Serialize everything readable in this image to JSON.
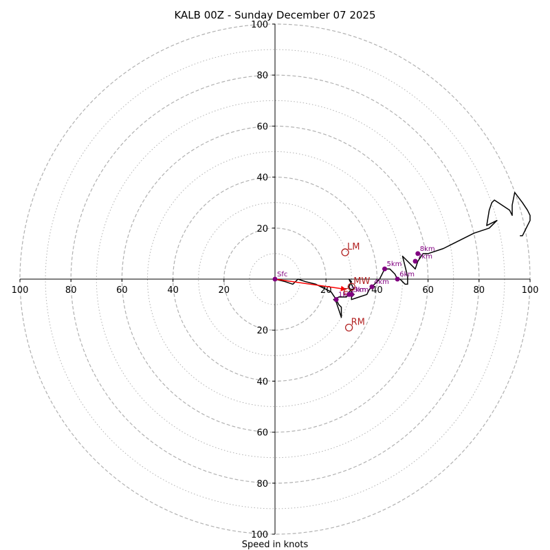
{
  "chart_data": {
    "type": "hodograph",
    "title": "KALB 00Z - Sunday December 07 2025",
    "xlabel": "Speed in knots",
    "range": [
      -100,
      100
    ],
    "ring_major": [
      20,
      40,
      60,
      80,
      100
    ],
    "ring_minor": [
      10,
      30,
      50,
      70,
      90
    ],
    "x_tick_labels": [
      "100",
      "80",
      "60",
      "40",
      "20",
      "20",
      "40",
      "60",
      "80",
      "100"
    ],
    "x_tick_values": [
      -100,
      -80,
      -60,
      -40,
      -20,
      20,
      40,
      60,
      80,
      100
    ],
    "y_tick_labels": [
      "100",
      "80",
      "60",
      "40",
      "20",
      "20",
      "40",
      "60",
      "80",
      "100"
    ],
    "y_tick_values": [
      100,
      80,
      60,
      40,
      20,
      -20,
      -40,
      -60,
      -80,
      -100
    ],
    "trace": [
      [
        0,
        0
      ],
      [
        4,
        -1
      ],
      [
        7,
        -2
      ],
      [
        9,
        0
      ],
      [
        12,
        -1
      ],
      [
        16,
        -2
      ],
      [
        20,
        -4
      ],
      [
        22,
        -5
      ],
      [
        24,
        -8
      ],
      [
        25,
        -10
      ],
      [
        26,
        -11
      ],
      [
        26,
        -13
      ],
      [
        26,
        -15
      ],
      [
        25,
        -12
      ],
      [
        24,
        -9
      ],
      [
        23,
        -8
      ],
      [
        25,
        -7
      ],
      [
        28,
        -7
      ],
      [
        29,
        -5
      ],
      [
        30,
        -4
      ],
      [
        31,
        -4
      ],
      [
        30,
        -2
      ],
      [
        29,
        0
      ],
      [
        30,
        -1
      ],
      [
        29,
        -3
      ],
      [
        30,
        -5
      ],
      [
        31,
        -6
      ],
      [
        30,
        -7
      ],
      [
        30,
        -8
      ],
      [
        33,
        -7
      ],
      [
        36,
        -6
      ],
      [
        37,
        -4
      ],
      [
        39,
        -2
      ],
      [
        40,
        -1
      ],
      [
        41,
        0
      ],
      [
        43,
        4
      ],
      [
        45,
        4
      ],
      [
        47,
        2
      ],
      [
        48,
        0
      ],
      [
        49,
        0
      ],
      [
        50,
        -1
      ],
      [
        51,
        -2
      ],
      [
        52,
        -2
      ],
      [
        52,
        1
      ],
      [
        50,
        9
      ],
      [
        53,
        6
      ],
      [
        55,
        4
      ],
      [
        56,
        7
      ],
      [
        58,
        10
      ],
      [
        60,
        10
      ],
      [
        66,
        12
      ],
      [
        70,
        14
      ],
      [
        78,
        18
      ],
      [
        84,
        20
      ],
      [
        87,
        23
      ],
      [
        83,
        21
      ],
      [
        84,
        27
      ],
      [
        85,
        30
      ],
      [
        86,
        31
      ],
      [
        89,
        29
      ],
      [
        92,
        27
      ],
      [
        93,
        25
      ],
      [
        93,
        29
      ],
      [
        94,
        34
      ],
      [
        97,
        30
      ],
      [
        99,
        27
      ],
      [
        100,
        25
      ],
      [
        100,
        23
      ],
      [
        99,
        21
      ],
      [
        97,
        17
      ],
      [
        96,
        17
      ]
    ],
    "height_markers": [
      {
        "label": "Sfc",
        "u": 0,
        "v": 0
      },
      {
        "label": "1km",
        "u": 24,
        "v": -8
      },
      {
        "label": "2km",
        "u": 29,
        "v": -6
      },
      {
        "label": "3km",
        "u": 30,
        "v": -6
      },
      {
        "label": "4km",
        "u": 38,
        "v": -3
      },
      {
        "label": "5km",
        "u": 43,
        "v": 4
      },
      {
        "label": "6km",
        "u": 48,
        "v": 0
      },
      {
        "label": "7km",
        "u": 55,
        "v": 7
      },
      {
        "label": "8km",
        "u": 56,
        "v": 10
      }
    ],
    "storm_motions": [
      {
        "label": "LM",
        "u": 27.5,
        "v": 10.5
      },
      {
        "label": "RM",
        "u": 29,
        "v": -19
      },
      {
        "label": "MW",
        "u": 30,
        "v": -3
      }
    ],
    "shear_vector": {
      "label": "E",
      "from": [
        0,
        0
      ],
      "to": [
        28,
        -4
      ]
    },
    "colors": {
      "trace": "#000000",
      "marker": "#800080",
      "motion": "#b22222",
      "shear": "#ff0000",
      "grid": "#b0b0b0"
    }
  }
}
